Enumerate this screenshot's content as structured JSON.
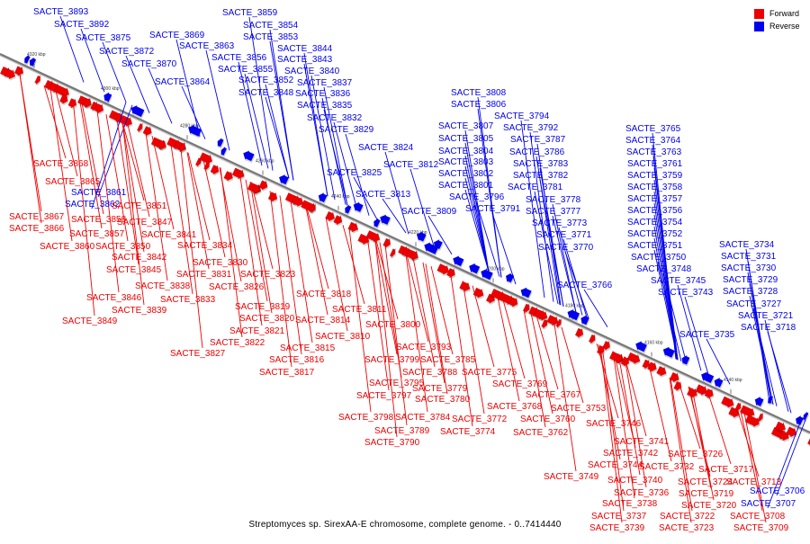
{
  "legend": [
    {
      "label": "Forward",
      "color": "#ee0000"
    },
    {
      "label": "Reverse",
      "color": "#0000ee"
    }
  ],
  "caption": "Streptomyces sp. SirexAA-E chromosome, complete genome. - 0..7414440",
  "colors": {
    "forward": "#ee0000",
    "reverse": "#0000ee",
    "axis": "#777777"
  },
  "ticks": [
    {
      "label": "4320 kbp",
      "kbp": 4320
    },
    {
      "label": "4300 kbp",
      "kbp": 4300
    },
    {
      "label": "4280 kbp",
      "kbp": 4280
    },
    {
      "label": "4260 kbp",
      "kbp": 4260
    },
    {
      "label": "4240 kbp",
      "kbp": 4240
    },
    {
      "label": "4220 kbp",
      "kbp": 4220
    },
    {
      "label": "4200 kbp",
      "kbp": 4200
    },
    {
      "label": "4180 kbp",
      "kbp": 4180
    },
    {
      "label": "4160 kbp",
      "kbp": 4160
    },
    {
      "label": "4140 kbp",
      "kbp": 4140
    }
  ],
  "reverse_labels": [
    "SACTE_3893",
    "SACTE_3892",
    "SACTE_3875",
    "SACTE_3872",
    "SACTE_3870",
    "SACTE_3869",
    "SACTE_3863",
    "SACTE_3864",
    "SACTE_3859",
    "SACTE_3854",
    "SACTE_3853",
    "SACTE_3856",
    "SACTE_3855",
    "SACTE_3852",
    "SACTE_3848",
    "SACTE_3844",
    "SACTE_3843",
    "SACTE_3840",
    "SACTE_3837",
    "SACTE_3836",
    "SACTE_3835",
    "SACTE_3832",
    "SACTE_3829",
    "SACTE_3824",
    "SACTE_3825",
    "SACTE_3812",
    "SACTE_3813",
    "SACTE_3861",
    "SACTE_3862",
    "SACTE_3808",
    "SACTE_3806",
    "SACTE_3807",
    "SACTE_3805",
    "SACTE_3804",
    "SACTE_3803",
    "SACTE_3802",
    "SACTE_3801",
    "SACTE_3796",
    "SACTE_3791",
    "SACTE_3809",
    "SACTE_3794",
    "SACTE_3792",
    "SACTE_3787",
    "SACTE_3786",
    "SACTE_3783",
    "SACTE_3782",
    "SACTE_3781",
    "SACTE_3778",
    "SACTE_3777",
    "SACTE_3773",
    "SACTE_3771",
    "SACTE_3770",
    "SACTE_3765",
    "SACTE_3764",
    "SACTE_3763",
    "SACTE_3761",
    "SACTE_3759",
    "SACTE_3758",
    "SACTE_3757",
    "SACTE_3756",
    "SACTE_3754",
    "SACTE_3752",
    "SACTE_3751",
    "SACTE_3750",
    "SACTE_3748",
    "SACTE_3745",
    "SACTE_3743",
    "SACTE_3766",
    "SACTE_3734",
    "SACTE_3731",
    "SACTE_3730",
    "SACTE_3729",
    "SACTE_3728",
    "SACTE_3727",
    "SACTE_3721",
    "SACTE_3718",
    "SACTE_3735",
    "SACTE_3706",
    "SACTE_3707"
  ],
  "forward_labels": [
    "SACTE_3868",
    "SACTE_3865",
    "SACTE_3867",
    "SACTE_3866",
    "SACTE_3858",
    "SACTE_3857",
    "SACTE_3860",
    "SACTE_3851",
    "SACTE_3847",
    "SACTE_3841",
    "SACTE_3850",
    "SACTE_3842",
    "SACTE_3845",
    "SACTE_3834",
    "SACTE_3830",
    "SACTE_3831",
    "SACTE_3838",
    "SACTE_3846",
    "SACTE_3839",
    "SACTE_3833",
    "SACTE_3849",
    "SACTE_3826",
    "SACTE_3823",
    "SACTE_3818",
    "SACTE_3819",
    "SACTE_3820",
    "SACTE_3821",
    "SACTE_3822",
    "SACTE_3827",
    "SACTE_3814",
    "SACTE_3811",
    "SACTE_3815",
    "SACTE_3816",
    "SACTE_3817",
    "SACTE_3810",
    "SACTE_3800",
    "SACTE_3793",
    "SACTE_3799",
    "SACTE_3785",
    "SACTE_3788",
    "SACTE_3795",
    "SACTE_3779",
    "SACTE_3797",
    "SACTE_3780",
    "SACTE_3775",
    "SACTE_3769",
    "SACTE_3767",
    "SACTE_3768",
    "SACTE_3798",
    "SACTE_3784",
    "SACTE_3772",
    "SACTE_3760",
    "SACTE_3789",
    "SACTE_3790",
    "SACTE_3774",
    "SACTE_3762",
    "SACTE_3753",
    "SACTE_3746",
    "SACTE_3741",
    "SACTE_3742",
    "SACTE_3744",
    "SACTE_3740",
    "SACTE_3749",
    "SACTE_3736",
    "SACTE_3738",
    "SACTE_3737",
    "SACTE_3739",
    "SACTE_3732",
    "SACTE_3726",
    "SACTE_3724",
    "SACTE_3719",
    "SACTE_3720",
    "SACTE_3722",
    "SACTE_3723",
    "SACTE_3717",
    "SACTE_3713",
    "SACTE_3708",
    "SACTE_3709"
  ]
}
